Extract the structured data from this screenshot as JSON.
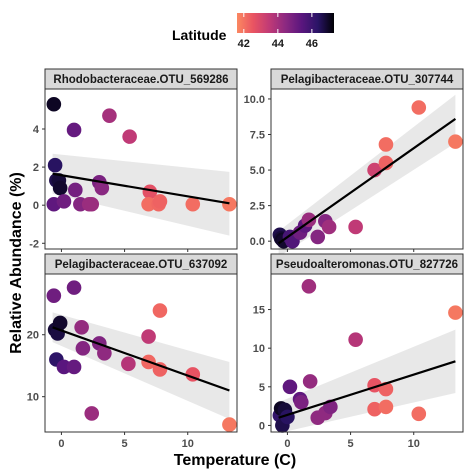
{
  "legend": {
    "title": "Latitude",
    "ticks": [
      "42",
      "44",
      "46"
    ],
    "tick_values": [
      42,
      44,
      46
    ],
    "range": [
      41.6,
      47.3
    ],
    "gradient": [
      "#fb8861",
      "#e95462",
      "#c03a76",
      "#8c2981",
      "#5a167e",
      "#2a1466",
      "#000004"
    ]
  },
  "axes": {
    "xlabel": "Temperature (C)",
    "ylabel": "Relative Abundance (%)"
  },
  "chart_data": [
    {
      "type": "scatter",
      "title": "Rhodobacteraceae.OTU_569286",
      "x_ticks": [
        0,
        5,
        10
      ],
      "y_ticks": [
        "-2",
        "0",
        "2",
        "4"
      ],
      "y_tick_values": [
        -2,
        0,
        2,
        4
      ],
      "xlim": [
        -1.3,
        13.9
      ],
      "ylim": [
        -2.3,
        6.1
      ],
      "fit": {
        "x": [
          -0.7,
          13.3
        ],
        "y": [
          1.65,
          0.1
        ]
      },
      "band": {
        "upper": [
          2.7,
          1.75
        ],
        "lower": [
          0.6,
          -1.6
        ]
      },
      "points": [
        {
          "x": -0.6,
          "y": 5.3,
          "lat": 47
        },
        {
          "x": -0.5,
          "y": 2.1,
          "lat": 46.4
        },
        {
          "x": -0.4,
          "y": 1.3,
          "lat": 46.6
        },
        {
          "x": -0.2,
          "y": 1.3,
          "lat": 46.8
        },
        {
          "x": -0.1,
          "y": 0.9,
          "lat": 46.9
        },
        {
          "x": -0.6,
          "y": 0.05,
          "lat": 45.3
        },
        {
          "x": 0.2,
          "y": 0.2,
          "lat": 45
        },
        {
          "x": 1.0,
          "y": 3.95,
          "lat": 45.2
        },
        {
          "x": 1.1,
          "y": 0.8,
          "lat": 44.9
        },
        {
          "x": 1.5,
          "y": 0.05,
          "lat": 44.6
        },
        {
          "x": 2.2,
          "y": 0.05,
          "lat": 44.2
        },
        {
          "x": 2.4,
          "y": 0.05,
          "lat": 44.2
        },
        {
          "x": 3.0,
          "y": 1.2,
          "lat": 44.8
        },
        {
          "x": 3.2,
          "y": 0.9,
          "lat": 44.5
        },
        {
          "x": 3.8,
          "y": 4.7,
          "lat": 44
        },
        {
          "x": 5.4,
          "y": 3.6,
          "lat": 43.5
        },
        {
          "x": 7.0,
          "y": 0.7,
          "lat": 42.7
        },
        {
          "x": 6.9,
          "y": 0.05,
          "lat": 42.1
        },
        {
          "x": 7.7,
          "y": 0.05,
          "lat": 42.2
        },
        {
          "x": 7.8,
          "y": 0.2,
          "lat": 42.3
        },
        {
          "x": 10.4,
          "y": 0.05,
          "lat": 42.1
        },
        {
          "x": 13.3,
          "y": 0.05,
          "lat": 41.9
        }
      ]
    },
    {
      "type": "scatter",
      "title": "Pelagibacteraceae.OTU_307744",
      "x_ticks": [
        0,
        5,
        10
      ],
      "y_ticks": [
        "0.0",
        "2.5",
        "5.0",
        "7.5",
        "10.0"
      ],
      "y_tick_values": [
        0,
        2.5,
        5,
        7.5,
        10
      ],
      "xlim": [
        -1.3,
        13.9
      ],
      "ylim": [
        -0.55,
        10.7
      ],
      "fit": {
        "x": [
          -0.7,
          13.3
        ],
        "y": [
          -0.15,
          8.6
        ]
      },
      "band": {
        "upper": [
          0.7,
          10.3
        ],
        "lower": [
          -1.1,
          6.9
        ]
      },
      "points": [
        {
          "x": -0.6,
          "y": 0.45,
          "lat": 46.6
        },
        {
          "x": -0.5,
          "y": 0.2,
          "lat": 46.8
        },
        {
          "x": -0.4,
          "y": 0.1,
          "lat": 47
        },
        {
          "x": -0.3,
          "y": 0.0,
          "lat": 46.9
        },
        {
          "x": 0.2,
          "y": 0.3,
          "lat": 45.8
        },
        {
          "x": 0.4,
          "y": 0.0,
          "lat": 45.6
        },
        {
          "x": 1.0,
          "y": 0.6,
          "lat": 45
        },
        {
          "x": 1.4,
          "y": 1.1,
          "lat": 45.3
        },
        {
          "x": 1.7,
          "y": 1.5,
          "lat": 44.2
        },
        {
          "x": 2.4,
          "y": 0.3,
          "lat": 44.6
        },
        {
          "x": 3.0,
          "y": 1.4,
          "lat": 44.6
        },
        {
          "x": 3.3,
          "y": 1.0,
          "lat": 44.1
        },
        {
          "x": 5.4,
          "y": 1.0,
          "lat": 43.5
        },
        {
          "x": 6.9,
          "y": 5.0,
          "lat": 43.2
        },
        {
          "x": 7.8,
          "y": 5.5,
          "lat": 42.3
        },
        {
          "x": 7.8,
          "y": 6.8,
          "lat": 42.1
        },
        {
          "x": 10.4,
          "y": 9.4,
          "lat": 42.1
        },
        {
          "x": 13.3,
          "y": 7.0,
          "lat": 41.9
        }
      ]
    },
    {
      "type": "scatter",
      "title": "Pelagibacteraceae.OTU_637092",
      "x_ticks": [
        0,
        5,
        10
      ],
      "y_ticks": [
        "10",
        "20"
      ],
      "y_tick_values": [
        10,
        20
      ],
      "xlim": [
        -1.3,
        13.9
      ],
      "ylim": [
        4.3,
        29.8
      ],
      "fit": {
        "x": [
          -0.7,
          13.3
        ],
        "y": [
          21.2,
          11.0
        ]
      },
      "band": {
        "upper": [
          23.6,
          15.6
        ],
        "lower": [
          18.8,
          6.4
        ]
      },
      "points": [
        {
          "x": -0.6,
          "y": 26.3,
          "lat": 45
        },
        {
          "x": -0.5,
          "y": 20.8,
          "lat": 46.8
        },
        {
          "x": -0.3,
          "y": 20.2,
          "lat": 46.7
        },
        {
          "x": -0.4,
          "y": 16.0,
          "lat": 46.3
        },
        {
          "x": -0.1,
          "y": 21.9,
          "lat": 46.9
        },
        {
          "x": 0.2,
          "y": 14.8,
          "lat": 45.4
        },
        {
          "x": 1.0,
          "y": 27.6,
          "lat": 45
        },
        {
          "x": 1.0,
          "y": 14.8,
          "lat": 45.2
        },
        {
          "x": 1.6,
          "y": 21.2,
          "lat": 44.3
        },
        {
          "x": 1.7,
          "y": 17.8,
          "lat": 44.6
        },
        {
          "x": 2.4,
          "y": 7.3,
          "lat": 44.2
        },
        {
          "x": 3.0,
          "y": 18.6,
          "lat": 44.7
        },
        {
          "x": 3.4,
          "y": 17.0,
          "lat": 44.4
        },
        {
          "x": 5.3,
          "y": 15.3,
          "lat": 43.7
        },
        {
          "x": 6.9,
          "y": 19.7,
          "lat": 43.5
        },
        {
          "x": 6.9,
          "y": 15.6,
          "lat": 42.2
        },
        {
          "x": 7.8,
          "y": 14.4,
          "lat": 42.3
        },
        {
          "x": 7.8,
          "y": 23.9,
          "lat": 42.2
        },
        {
          "x": 10.4,
          "y": 13.6,
          "lat": 42.6
        },
        {
          "x": 13.3,
          "y": 5.5,
          "lat": 41.9
        }
      ]
    },
    {
      "type": "scatter",
      "title": "Pseudoalteromonas.OTU_827726",
      "x_ticks": [
        0,
        5,
        10
      ],
      "y_ticks": [
        "0",
        "5",
        "10",
        "15"
      ],
      "y_tick_values": [
        0,
        5,
        10,
        15
      ],
      "xlim": [
        -1.3,
        13.9
      ],
      "ylim": [
        -0.85,
        19.6
      ],
      "fit": {
        "x": [
          -0.7,
          13.3
        ],
        "y": [
          1.0,
          8.3
        ]
      },
      "band": {
        "upper": [
          3.0,
          12.4
        ],
        "lower": [
          -1.0,
          4.2
        ]
      },
      "points": [
        {
          "x": -0.6,
          "y": 1.3,
          "lat": 46.2
        },
        {
          "x": -0.5,
          "y": 2.2,
          "lat": 47
        },
        {
          "x": -0.4,
          "y": 0.0,
          "lat": 46.6
        },
        {
          "x": -0.2,
          "y": 2.0,
          "lat": 46.8
        },
        {
          "x": 0.0,
          "y": 1.1,
          "lat": 46.4
        },
        {
          "x": 0.2,
          "y": 5.0,
          "lat": 45.3
        },
        {
          "x": 1.0,
          "y": 3.4,
          "lat": 45.3
        },
        {
          "x": 1.1,
          "y": 3.0,
          "lat": 44.8
        },
        {
          "x": 1.7,
          "y": 18.0,
          "lat": 44.1
        },
        {
          "x": 1.8,
          "y": 5.7,
          "lat": 44.3
        },
        {
          "x": 2.4,
          "y": 1.0,
          "lat": 44.4
        },
        {
          "x": 3.0,
          "y": 1.6,
          "lat": 44.4
        },
        {
          "x": 3.4,
          "y": 2.4,
          "lat": 44.7
        },
        {
          "x": 5.4,
          "y": 11.1,
          "lat": 43.7
        },
        {
          "x": 6.9,
          "y": 5.2,
          "lat": 42.6
        },
        {
          "x": 6.9,
          "y": 2.1,
          "lat": 42.3
        },
        {
          "x": 7.8,
          "y": 4.7,
          "lat": 42.3
        },
        {
          "x": 7.8,
          "y": 2.4,
          "lat": 42.1
        },
        {
          "x": 10.4,
          "y": 1.5,
          "lat": 42.1
        },
        {
          "x": 13.3,
          "y": 14.6,
          "lat": 41.9
        }
      ]
    }
  ]
}
